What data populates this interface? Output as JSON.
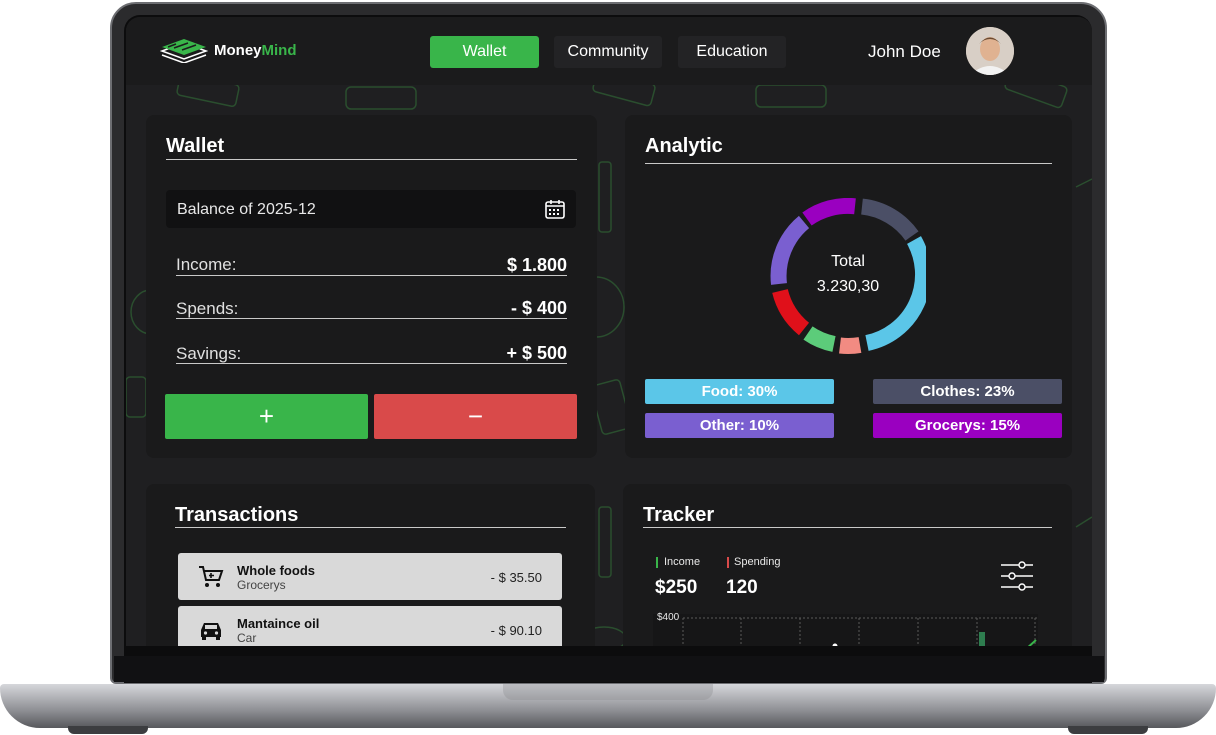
{
  "nav": {
    "brand_prefix": "Money",
    "brand_suffix": "Mind",
    "tabs": [
      {
        "label": "Wallet",
        "active": true
      },
      {
        "label": "Community",
        "active": false
      },
      {
        "label": "Education",
        "active": false
      }
    ],
    "user_name": "John Doe"
  },
  "wallet": {
    "title": "Wallet",
    "balance_label": "Balance of 2025-12",
    "rows": [
      {
        "label": "Income:",
        "value": "$ 1.800"
      },
      {
        "label": "Spends:",
        "value": "- $ 400"
      },
      {
        "label": "Savings:",
        "value": "+ $ 500"
      }
    ],
    "add_label": "+",
    "remove_label": "−"
  },
  "analytic": {
    "title": "Analytic",
    "total_label": "Total",
    "total_value": "3.230,30",
    "legend": [
      {
        "label": "Food: 30%",
        "color": "#5bc6e8"
      },
      {
        "label": "Clothes: 23%",
        "color": "#4b4f66"
      },
      {
        "label": "Other: 10%",
        "color": "#7a5fd0"
      },
      {
        "label": "Grocerys: 15%",
        "color": "#9a00c0"
      }
    ]
  },
  "transactions": {
    "title": "Transactions",
    "items": [
      {
        "name": "Whole foods",
        "category": "Grocerys",
        "amount": "- $ 35.50",
        "icon": "cart-icon"
      },
      {
        "name": "Mantaince oil",
        "category": "Car",
        "amount": "- $ 90.10",
        "icon": "car-icon"
      }
    ]
  },
  "tracker": {
    "title": "Tracker",
    "income_label": "Income",
    "income_value": "$250",
    "spending_label": "Spending",
    "spending_value": "120",
    "y_tick": "$400",
    "income_color": "#39b54a",
    "spending_color": "#d94a4a"
  },
  "colors": {
    "accent": "#39b54a",
    "danger": "#d94a4a",
    "card": "#1a1a1b",
    "background": "#1f1f21"
  }
}
